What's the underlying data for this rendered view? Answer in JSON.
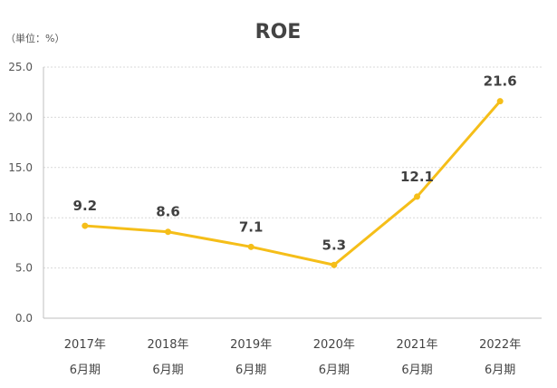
{
  "chart_data": {
    "type": "line",
    "title": "ROE",
    "unit_label": "（単位：%）",
    "categories": [
      [
        "2017年",
        "6月期"
      ],
      [
        "2018年",
        "6月期"
      ],
      [
        "2019年",
        "6月期"
      ],
      [
        "2020年",
        "6月期"
      ],
      [
        "2021年",
        "6月期"
      ],
      [
        "2022年",
        "6月期"
      ]
    ],
    "series": [
      {
        "values": [
          9.2,
          8.6,
          7.1,
          5.3,
          12.1,
          21.6
        ],
        "color": "#F5BE19"
      }
    ],
    "data_labels": [
      "9.2",
      "8.6",
      "7.1",
      "5.3",
      "12.1",
      "21.6"
    ],
    "ylim": [
      0,
      25
    ],
    "yticks": [
      "0.0",
      "5.0",
      "10.0",
      "15.0",
      "20.0",
      "25.0"
    ],
    "ytick_values": [
      0,
      5,
      10,
      15,
      20,
      25
    ],
    "grid": true,
    "legend": "none"
  }
}
